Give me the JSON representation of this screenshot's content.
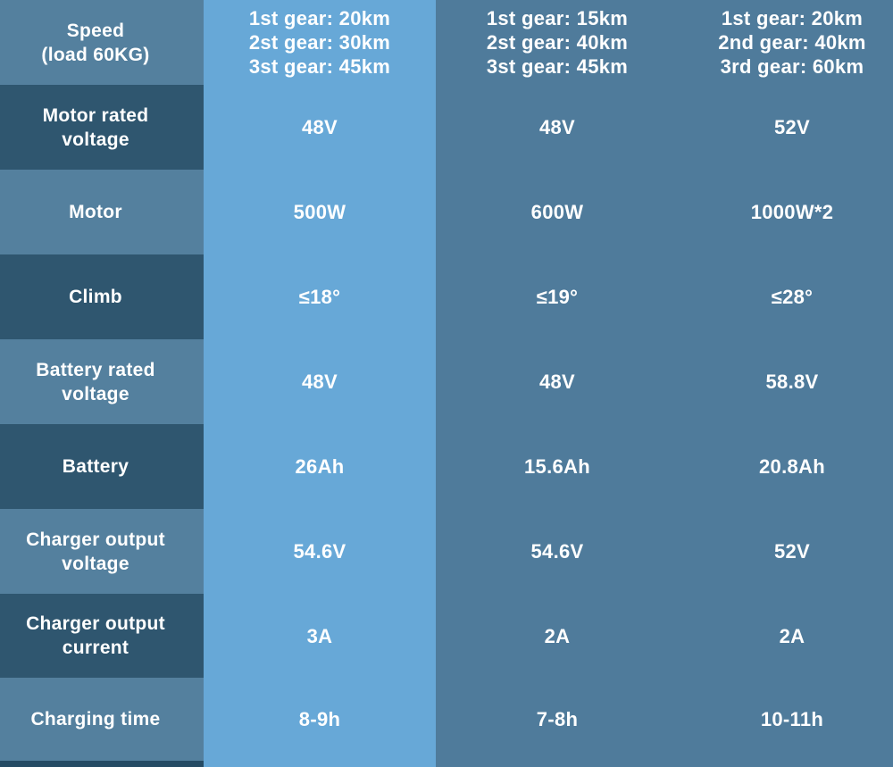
{
  "colors": {
    "background_right_columns": "#4f7b9b",
    "highlight_column": "#67a8d7",
    "label_row_medium": "#54809e",
    "label_row_dark": "#2f566f",
    "next_row_strip": "#254b64",
    "text": "#ffffff"
  },
  "table": {
    "rows": [
      {
        "label": "Speed\n(load 60KG)",
        "values": [
          "1st gear: 20km\n2st gear: 30km\n3st gear: 45km",
          "1st gear: 15km\n2st gear: 40km\n3st gear: 45km",
          "1st gear: 20km\n2nd gear: 40km\n3rd gear: 60km"
        ]
      },
      {
        "label": "Motor rated\nvoltage",
        "values": [
          "48V",
          "48V",
          "52V"
        ]
      },
      {
        "label": "Motor",
        "values": [
          "500W",
          "600W",
          "1000W*2"
        ]
      },
      {
        "label": "Climb",
        "values": [
          "≤18°",
          "≤19°",
          "≤28°"
        ]
      },
      {
        "label": "Battery rated\nvoltage",
        "values": [
          "48V",
          "48V",
          "58.8V"
        ]
      },
      {
        "label": "Battery",
        "values": [
          "26Ah",
          "15.6Ah",
          "20.8Ah"
        ]
      },
      {
        "label": "Charger output\nvoltage",
        "values": [
          "54.6V",
          "54.6V",
          "52V"
        ]
      },
      {
        "label": "Charger output\ncurrent",
        "values": [
          "3A",
          "2A",
          "2A"
        ]
      },
      {
        "label": "Charging time",
        "values": [
          "8-9h",
          "7-8h",
          "10-11h"
        ]
      }
    ]
  }
}
